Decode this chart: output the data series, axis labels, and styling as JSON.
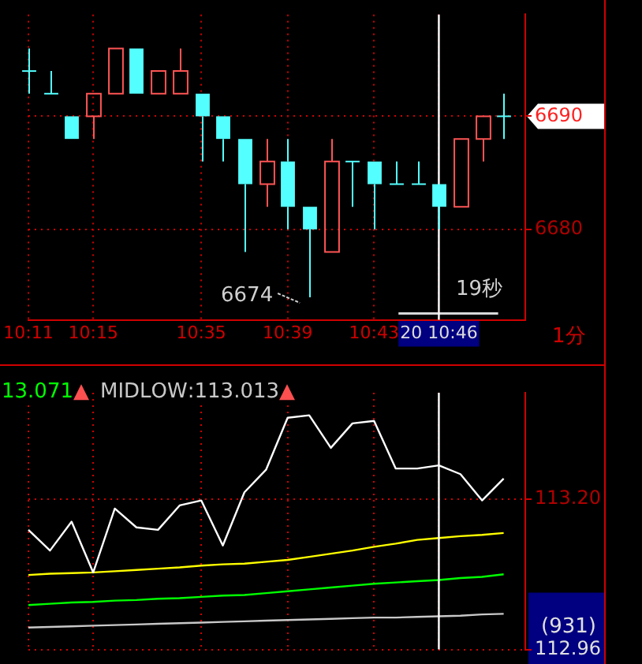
{
  "chart_data": [
    {
      "type": "candlestick",
      "categories": [
        "10:11",
        null,
        null,
        "10:15",
        null,
        null,
        null,
        null,
        "10:35",
        null,
        null,
        null,
        "10:39",
        null,
        null,
        null,
        "10:43",
        null,
        null,
        "20 10:46",
        null,
        null,
        null,
        null
      ],
      "ohlc": [
        [
          6694,
          6696,
          6692,
          6694
        ],
        [
          6692,
          6694,
          6692,
          6692
        ],
        [
          6690,
          6690,
          6688,
          6688
        ],
        [
          6690,
          6692,
          6688,
          6692
        ],
        [
          6692,
          6696,
          6692,
          6696
        ],
        [
          6696,
          6696,
          6692,
          6692
        ],
        [
          6692,
          6694,
          6692,
          6694
        ],
        [
          6692,
          6696,
          6692,
          6694
        ],
        [
          6692,
          6692,
          6686,
          6690
        ],
        [
          6690,
          6690,
          6686,
          6688
        ],
        [
          6688,
          6688,
          6678,
          6684
        ],
        [
          6684,
          6688,
          6682,
          6686
        ],
        [
          6686,
          6688,
          6680,
          6682
        ],
        [
          6682,
          6682,
          6674,
          6680
        ],
        [
          6678,
          6688,
          6678,
          6686
        ],
        [
          6686,
          6686,
          6682,
          6686
        ],
        [
          6686,
          6686,
          6680,
          6684
        ],
        [
          6684,
          6686,
          6684,
          6684
        ],
        [
          6684,
          6686,
          6684,
          6684
        ],
        [
          6684,
          6684,
          6680,
          6682
        ],
        [
          6682,
          6688,
          6682,
          6688
        ],
        [
          6688,
          6690,
          6686,
          6690
        ],
        [
          6690,
          6692,
          6688,
          6690
        ],
        null
      ],
      "colors": [
        "#54ffff",
        "#54ffff",
        "#54ffff",
        "#ff5454",
        "#ff5454",
        "#54ffff",
        "#ff5454",
        "#ff5454",
        "#54ffff",
        "#54ffff",
        "#54ffff",
        "#ff5454",
        "#54ffff",
        "#54ffff",
        "#ff5454",
        "#54ffff",
        "#54ffff",
        "#54ffff",
        "#54ffff",
        "#54ffff",
        "#ff5454",
        "#ff5454",
        "#54ffff",
        null
      ],
      "ylim": [
        6672,
        6699
      ],
      "yticks": [
        6680,
        6690
      ],
      "grid": true,
      "ref_lines": [
        {
          "axis": "x",
          "value": "20 10:46",
          "color": "#ffffff"
        }
      ],
      "annotations": [
        "6674",
        "19秒",
        "1分"
      ]
    },
    {
      "type": "line",
      "categories": [
        "10:11",
        null,
        null,
        "10:15",
        null,
        null,
        null,
        null,
        "10:35",
        null,
        null,
        null,
        "10:39",
        null,
        null,
        null,
        "10:43",
        null,
        null,
        "20 10:46",
        null,
        null,
        null,
        null
      ],
      "series": [
        {
          "color": "#ffffff",
          "values": [
            113.151,
            113.118,
            113.164,
            113.083,
            113.185,
            113.155,
            113.151,
            113.19,
            113.198,
            113.126,
            113.211,
            113.247,
            113.33,
            113.334,
            113.282,
            113.321,
            113.325,
            113.249,
            113.249,
            113.254,
            113.24,
            113.198,
            113.233,
            null
          ]
        },
        {
          "color": "#ffff00",
          "values": [
            113.079,
            113.081,
            113.082,
            113.083,
            113.085,
            113.087,
            113.089,
            113.091,
            113.094,
            113.096,
            113.097,
            113.1,
            113.103,
            113.108,
            113.113,
            113.118,
            113.124,
            113.129,
            113.135,
            113.138,
            113.141,
            113.143,
            113.146,
            null
          ]
        },
        {
          "color": "#00ff00",
          "values": [
            113.031,
            113.033,
            113.035,
            113.036,
            113.038,
            113.039,
            113.041,
            113.042,
            113.044,
            113.046,
            113.047,
            113.05,
            113.053,
            113.056,
            113.059,
            113.062,
            113.065,
            113.067,
            113.069,
            113.071,
            113.074,
            113.076,
            113.08,
            null
          ]
        },
        {
          "color": "#c8c8c8",
          "values": [
            112.995,
            112.996,
            112.997,
            112.998,
            112.999,
            113.0,
            113.001,
            113.002,
            113.003,
            113.004,
            113.005,
            113.006,
            113.007,
            113.008,
            113.009,
            113.01,
            113.011,
            113.011,
            113.012,
            113.013,
            113.014,
            113.016,
            113.017,
            null
          ]
        }
      ],
      "ylim": [
        112.96,
        113.37
      ],
      "yticks": [
        112.96,
        {
          "value": 113.2,
          "label": "113.20"
        }
      ],
      "grid": true,
      "marker": "none",
      "tick_labels": "y",
      "ref_lines": [
        {
          "axis": "x",
          "value": "20 10:46",
          "color": "#ffffff"
        }
      ],
      "annotations": [
        "13.071▲",
        "MIDLOW:113.013▲",
        "(931)"
      ]
    }
  ]
}
